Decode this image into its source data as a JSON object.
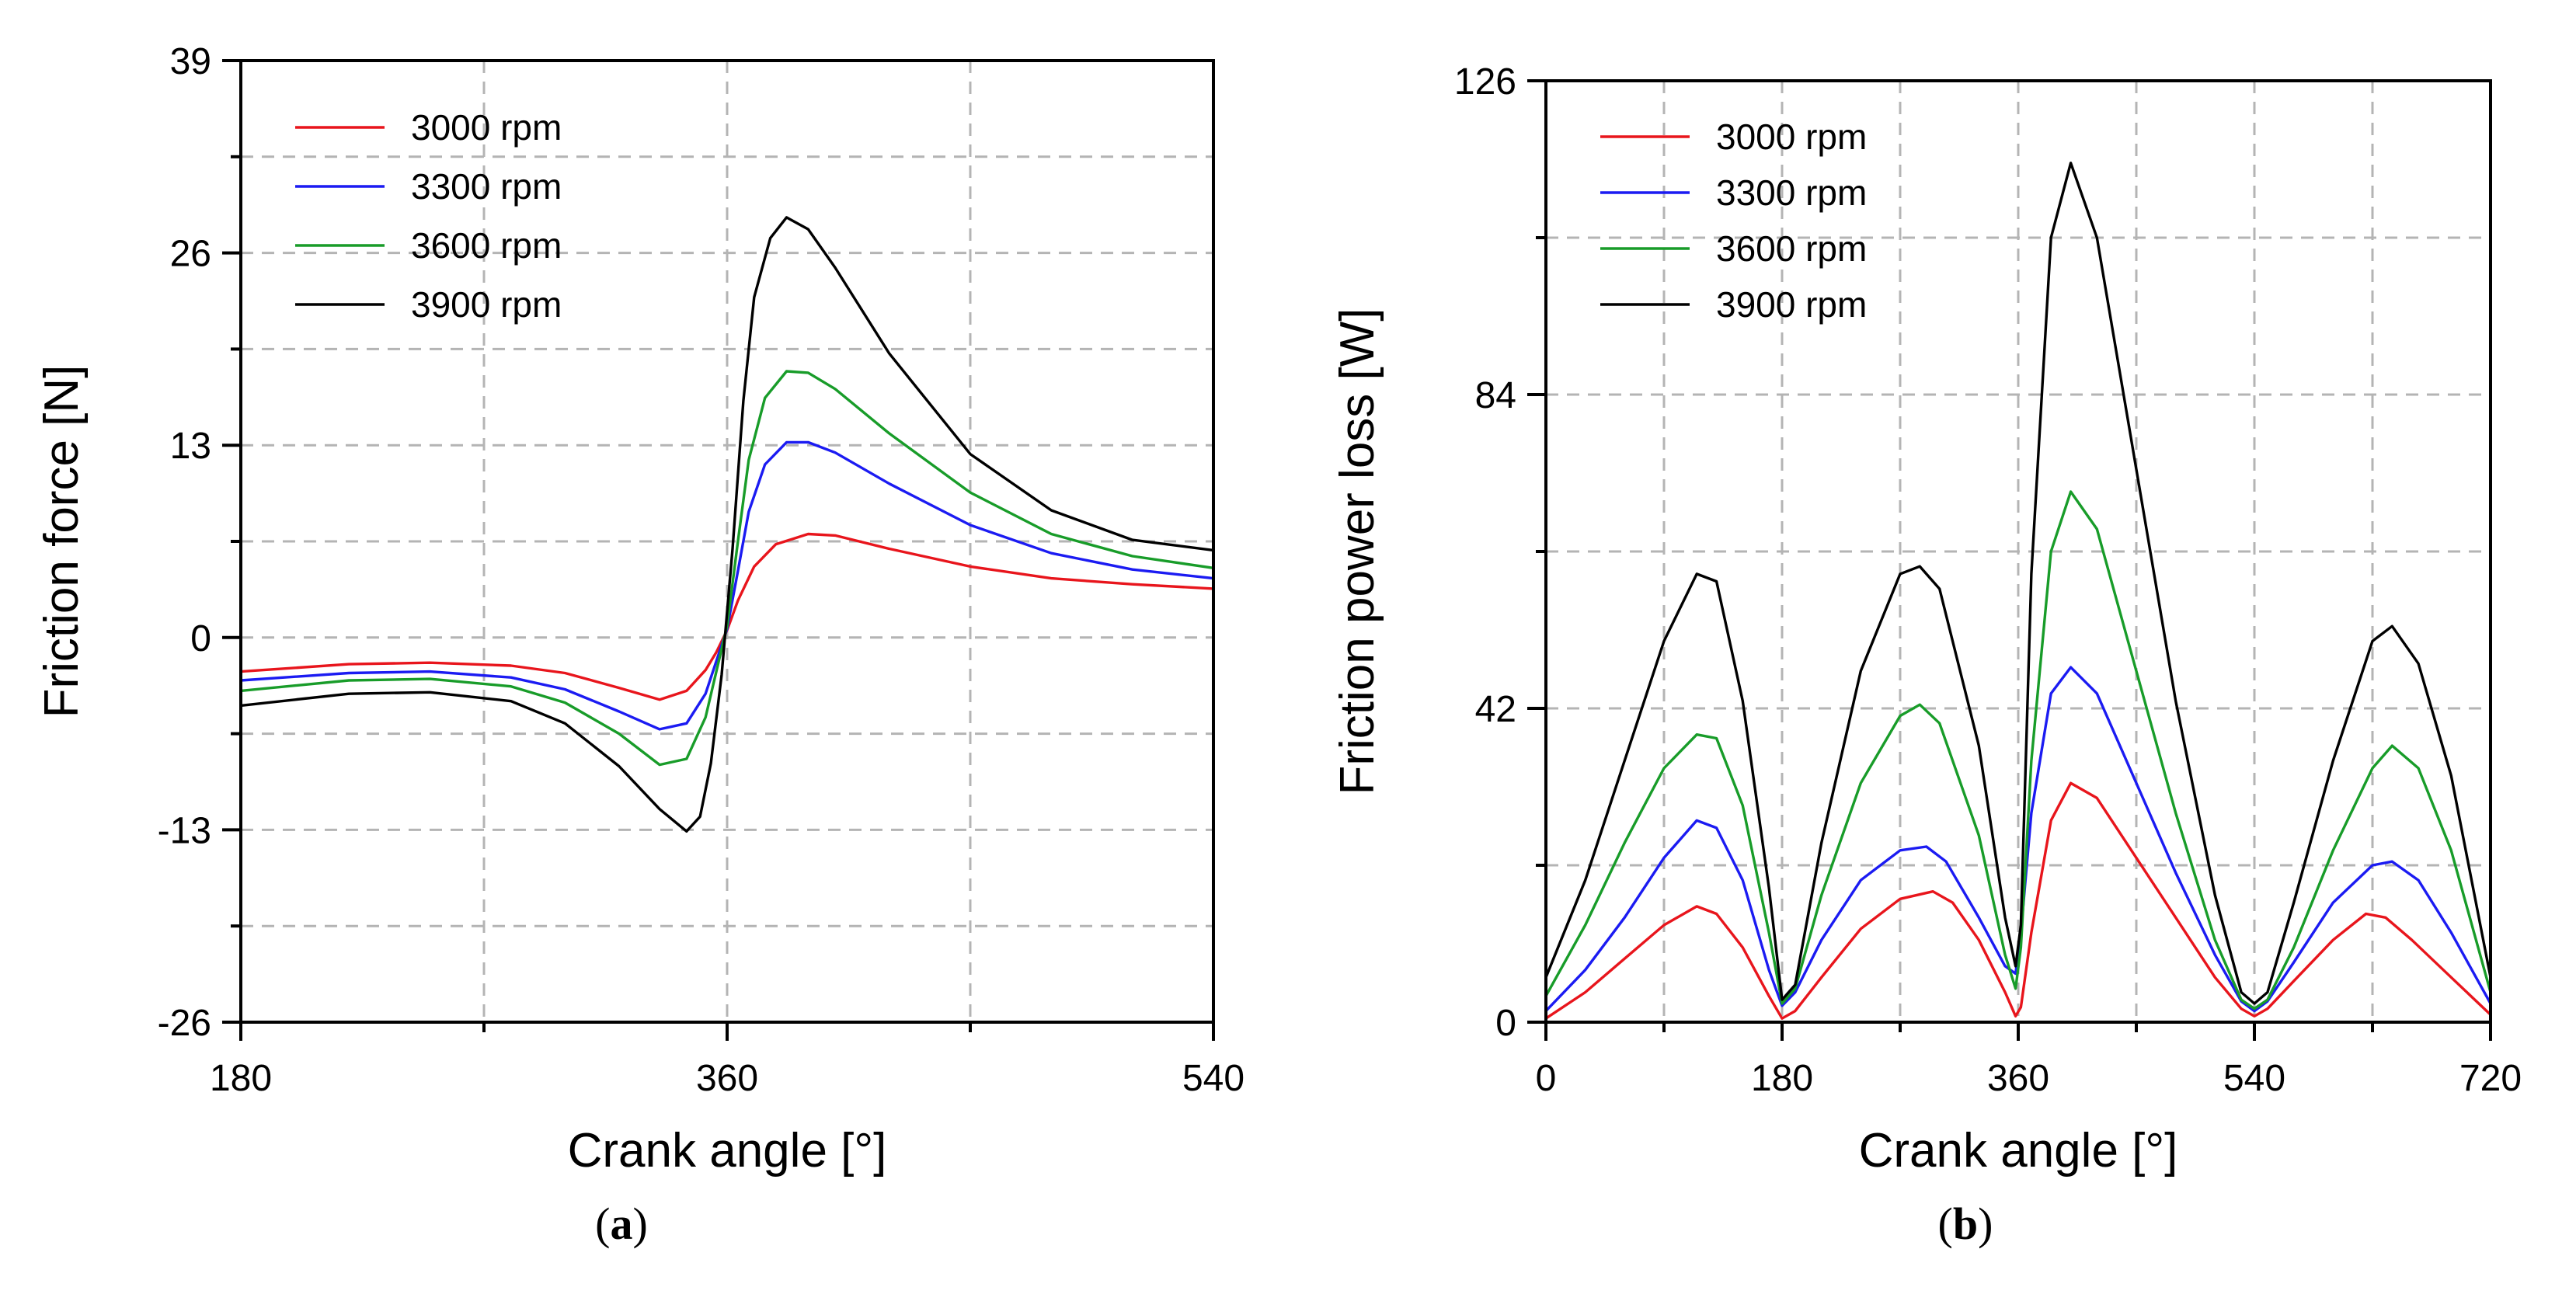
{
  "chart_data": [
    {
      "type": "line",
      "caption": "a",
      "xlabel": "Crank angle [°]",
      "ylabel": "Friction force [N]",
      "xlim": [
        180,
        540
      ],
      "ylim": [
        -26,
        39
      ],
      "xticks": [
        180,
        360,
        540
      ],
      "yticks": [
        -26,
        -13,
        0,
        13,
        26,
        39
      ],
      "xgrid": [
        270,
        360,
        450
      ],
      "ygrid": [
        -19.5,
        -13,
        -6.5,
        0,
        6.5,
        13,
        19.5,
        26,
        32.5
      ],
      "legend_position": "top-left",
      "series": [
        {
          "name": "3000 rpm",
          "color": "#e8151c",
          "x": [
            180,
            220,
            250,
            280,
            300,
            320,
            335,
            345,
            352,
            356,
            360,
            364,
            370,
            378,
            390,
            400,
            420,
            450,
            480,
            510,
            540
          ],
          "y": [
            -2.3,
            -1.8,
            -1.7,
            -1.9,
            -2.4,
            -3.4,
            -4.2,
            -3.6,
            -2.2,
            -1.0,
            0.5,
            2.5,
            4.8,
            6.3,
            7.0,
            6.9,
            6.0,
            4.8,
            4.0,
            3.6,
            3.3
          ]
        },
        {
          "name": "3300 rpm",
          "color": "#1b1bf2",
          "x": [
            180,
            220,
            250,
            280,
            300,
            320,
            335,
            345,
            352,
            356,
            360,
            364,
            368,
            374,
            382,
            390,
            400,
            420,
            450,
            480,
            510,
            540
          ],
          "y": [
            -2.9,
            -2.4,
            -2.3,
            -2.7,
            -3.5,
            -5.0,
            -6.2,
            -5.8,
            -3.8,
            -1.6,
            0.6,
            4.5,
            8.5,
            11.7,
            13.2,
            13.2,
            12.5,
            10.4,
            7.6,
            5.7,
            4.6,
            4.0
          ]
        },
        {
          "name": "3600 rpm",
          "color": "#189c29",
          "x": [
            180,
            220,
            250,
            280,
            300,
            320,
            335,
            345,
            352,
            356,
            360,
            364,
            368,
            374,
            382,
            390,
            400,
            420,
            450,
            480,
            510,
            540
          ],
          "y": [
            -3.6,
            -2.9,
            -2.8,
            -3.3,
            -4.4,
            -6.5,
            -8.6,
            -8.2,
            -5.4,
            -2.3,
            0.8,
            6.5,
            12.0,
            16.2,
            18.0,
            17.9,
            16.8,
            13.8,
            9.8,
            7.0,
            5.5,
            4.7
          ]
        },
        {
          "name": "3900 rpm",
          "color": "#000000",
          "x": [
            180,
            220,
            250,
            280,
            300,
            320,
            335,
            345,
            350,
            354,
            358,
            362,
            366,
            370,
            376,
            382,
            390,
            400,
            420,
            450,
            480,
            510,
            540
          ],
          "y": [
            -4.6,
            -3.8,
            -3.7,
            -4.3,
            -5.8,
            -8.7,
            -11.6,
            -13.1,
            -12.1,
            -8.5,
            -2.5,
            6.0,
            16.0,
            23.0,
            27.0,
            28.4,
            27.6,
            25.0,
            19.2,
            12.4,
            8.6,
            6.6,
            5.9
          ]
        }
      ]
    },
    {
      "type": "line",
      "caption": "b",
      "xlabel": "Crank angle [°]",
      "ylabel": "Friction power loss [W]",
      "xlim": [
        0,
        720
      ],
      "ylim": [
        0,
        126
      ],
      "xticks": [
        0,
        180,
        360,
        540,
        720
      ],
      "yticks": [
        0,
        42,
        84,
        126
      ],
      "xgrid": [
        90,
        180,
        270,
        360,
        450,
        540,
        630
      ],
      "ygrid": [
        21,
        42,
        63,
        84,
        105
      ],
      "legend_position": "top-left",
      "series": [
        {
          "name": "3000 rpm",
          "color": "#e8151c",
          "x": [
            0,
            30,
            60,
            90,
            115,
            130,
            150,
            170,
            180,
            190,
            210,
            240,
            270,
            295,
            310,
            330,
            350,
            358,
            362,
            370,
            385,
            400,
            420,
            450,
            480,
            510,
            530,
            540,
            550,
            570,
            600,
            625,
            640,
            660,
            690,
            720
          ],
          "y": [
            0.5,
            4,
            8.5,
            13,
            15.5,
            14.5,
            10,
            3.5,
            0.5,
            1.5,
            6,
            12.5,
            16.5,
            17.5,
            16,
            11,
            4,
            0.8,
            2,
            12,
            27,
            32,
            30,
            22,
            14,
            6,
            1.8,
            0.8,
            1.8,
            5.5,
            11,
            14.5,
            14,
            11,
            6,
            1
          ]
        },
        {
          "name": "3300 rpm",
          "color": "#1b1bf2",
          "x": [
            0,
            30,
            60,
            90,
            115,
            130,
            150,
            170,
            180,
            190,
            210,
            240,
            270,
            290,
            305,
            330,
            350,
            358,
            362,
            370,
            385,
            400,
            420,
            450,
            480,
            510,
            530,
            540,
            550,
            570,
            600,
            630,
            645,
            665,
            690,
            720
          ],
          "y": [
            1.5,
            7,
            14,
            22,
            27,
            26,
            19,
            7,
            2.2,
            4,
            11,
            19,
            23,
            23.5,
            21.5,
            14,
            7.5,
            6.5,
            12,
            28,
            44,
            47.5,
            44,
            32,
            20,
            9,
            2.8,
            1.5,
            2.8,
            8,
            16,
            21,
            21.5,
            19,
            12,
            2.5
          ]
        },
        {
          "name": "3600 rpm",
          "color": "#189c29",
          "x": [
            0,
            30,
            60,
            90,
            115,
            130,
            150,
            170,
            180,
            190,
            210,
            240,
            270,
            285,
            300,
            330,
            350,
            358,
            362,
            370,
            385,
            400,
            420,
            450,
            480,
            510,
            530,
            540,
            550,
            570,
            600,
            630,
            645,
            665,
            690,
            720
          ],
          "y": [
            3.5,
            13,
            24,
            34,
            38.5,
            38,
            29,
            12,
            2.5,
            4.5,
            17,
            32,
            41,
            42.5,
            40,
            25,
            9,
            4.5,
            10,
            35,
            63,
            71,
            66,
            47,
            28,
            11,
            3,
            1.8,
            3,
            10,
            23,
            34,
            37,
            34,
            23,
            4
          ]
        },
        {
          "name": "3900 rpm",
          "color": "#000000",
          "x": [
            0,
            30,
            60,
            90,
            115,
            130,
            150,
            170,
            180,
            190,
            210,
            240,
            270,
            285,
            300,
            330,
            350,
            358,
            362,
            370,
            385,
            400,
            420,
            450,
            480,
            510,
            530,
            540,
            550,
            570,
            600,
            630,
            645,
            665,
            690,
            720
          ],
          "y": [
            6,
            19,
            35,
            51,
            60,
            59,
            43,
            18,
            3,
            5,
            24,
            47,
            60,
            61,
            58,
            37,
            14,
            7.5,
            13,
            60,
            105,
            115,
            105,
            74,
            43,
            17,
            4,
            2.5,
            4,
            16,
            35,
            51,
            53,
            48,
            33,
            6
          ]
        }
      ]
    }
  ]
}
